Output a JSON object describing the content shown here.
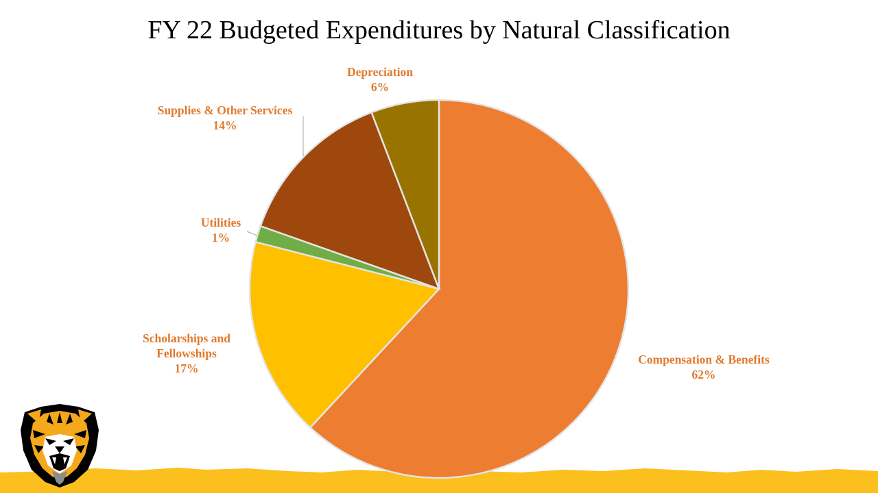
{
  "slide": {
    "title": "FY 22 Budgeted Expenditures by Natural Classification"
  },
  "colors": {
    "label_text": "#E07A2F",
    "ground": "#FBBF1E",
    "slice_border": "#E4E4E4",
    "leader_line": "#A6A6A6"
  },
  "logo": {
    "icon": "tiger-head-icon"
  },
  "chart_data": {
    "type": "pie",
    "title": "FY 22 Budgeted Expenditures by Natural Classification",
    "start_angle_deg": 0,
    "direction": "clockwise",
    "legend": "none",
    "slices": [
      {
        "label": "Compensation & Benefits",
        "pct_label": "62%",
        "value": 61.9,
        "color": "#ED7D31"
      },
      {
        "label": "Scholarships and Fellowships",
        "pct_label": "17%",
        "value": 17.1,
        "color": "#FFC000"
      },
      {
        "label": "Utilities",
        "pct_label": "1%",
        "value": 1.4,
        "color": "#70AD47"
      },
      {
        "label": "Supplies & Other Services",
        "pct_label": "14%",
        "value": 13.8,
        "color": "#9E480E"
      },
      {
        "label": "Depreciation",
        "pct_label": "6%",
        "value": 5.8,
        "color": "#997300"
      }
    ]
  }
}
